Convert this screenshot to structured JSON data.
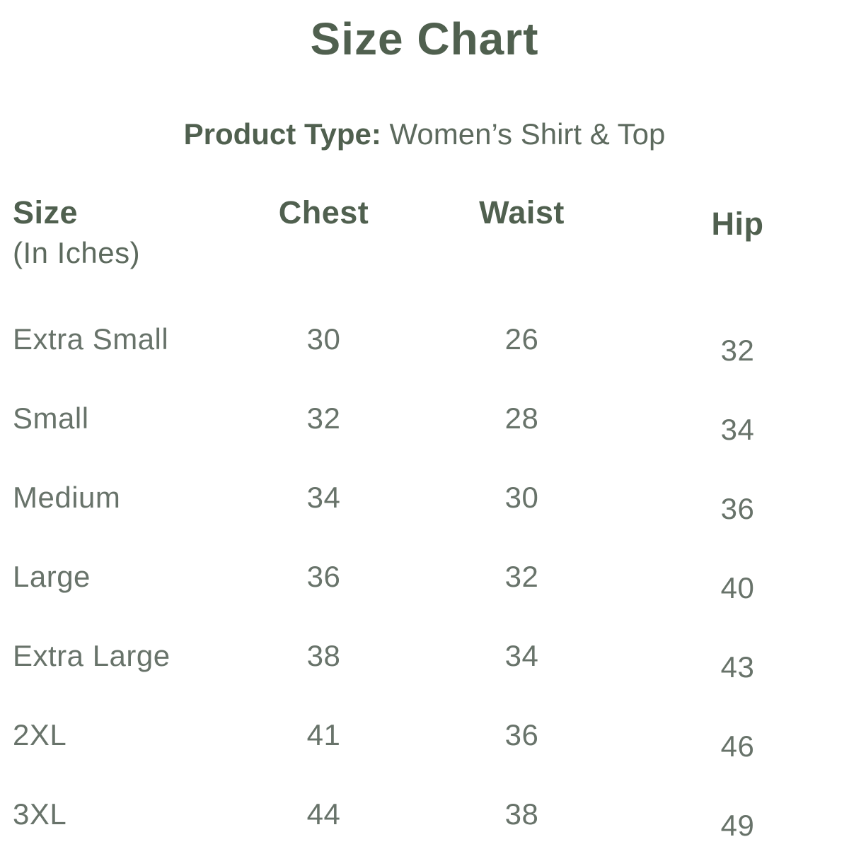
{
  "page": {
    "title": "Size Chart"
  },
  "product": {
    "label": "Product Type:",
    "value": " Women’s Shirt & Top"
  },
  "colors": {
    "heading_green": "#50604F",
    "body_green": "#68736A",
    "background": "#FFFFFF"
  },
  "table": {
    "headers": {
      "size": "Size",
      "size_sub": "(In Iches)",
      "chest": "Chest",
      "waist": "Waist",
      "hip": "Hip"
    },
    "rows": [
      {
        "size": "Extra Small",
        "chest": "30",
        "waist": "26",
        "hip": "32"
      },
      {
        "size": "Small",
        "chest": "32",
        "waist": "28",
        "hip": "34"
      },
      {
        "size": "Medium",
        "chest": "34",
        "waist": "30",
        "hip": "36"
      },
      {
        "size": "Large",
        "chest": "36",
        "waist": "32",
        "hip": "40"
      },
      {
        "size": "Extra Large",
        "chest": "38",
        "waist": "34",
        "hip": "43"
      },
      {
        "size": "2XL",
        "chest": "41",
        "waist": "36",
        "hip": "46"
      },
      {
        "size": "3XL",
        "chest": "44",
        "waist": "38",
        "hip": "49"
      }
    ]
  }
}
